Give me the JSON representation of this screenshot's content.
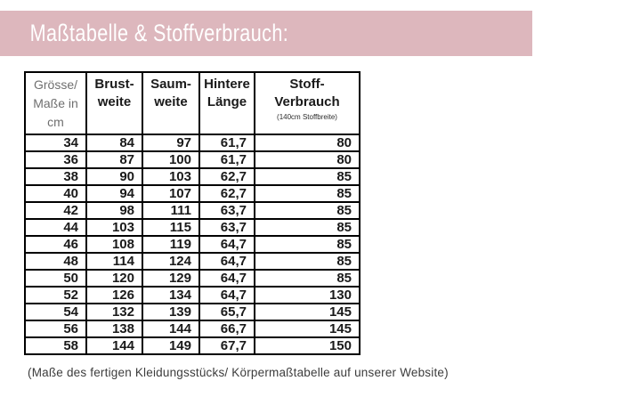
{
  "title_bar": {
    "text": "Maßtabelle & Stoffverbrauch:",
    "background_color": "#ddb7bd",
    "text_color": "#ffffff"
  },
  "table": {
    "headers": [
      {
        "label": "Grösse/\nMaße in\ncm"
      },
      {
        "label": "Brust-\nweite"
      },
      {
        "label": "Saum-\nweite"
      },
      {
        "label": "Hintere\nLänge"
      },
      {
        "label": "Stoff-Verbrauch",
        "sublabel": "(140cm Stoffbreite)"
      }
    ],
    "rows": [
      [
        "34",
        "84",
        "97",
        "61,7",
        "80"
      ],
      [
        "36",
        "87",
        "100",
        "61,7",
        "80"
      ],
      [
        "38",
        "90",
        "103",
        "62,7",
        "85"
      ],
      [
        "40",
        "94",
        "107",
        "62,7",
        "85"
      ],
      [
        "42",
        "98",
        "111",
        "63,7",
        "85"
      ],
      [
        "44",
        "103",
        "115",
        "63,7",
        "85"
      ],
      [
        "46",
        "108",
        "119",
        "64,7",
        "85"
      ],
      [
        "48",
        "114",
        "124",
        "64,7",
        "85"
      ],
      [
        "50",
        "120",
        "129",
        "64,7",
        "85"
      ],
      [
        "52",
        "126",
        "134",
        "64,7",
        "130"
      ],
      [
        "54",
        "132",
        "139",
        "65,7",
        "145"
      ],
      [
        "56",
        "138",
        "144",
        "66,7",
        "145"
      ],
      [
        "58",
        "144",
        "149",
        "67,7",
        "150"
      ]
    ]
  },
  "footer": {
    "note": "(Maße des fertigen Kleidungsstücks/ Körpermaßtabelle auf unserer Website)"
  }
}
